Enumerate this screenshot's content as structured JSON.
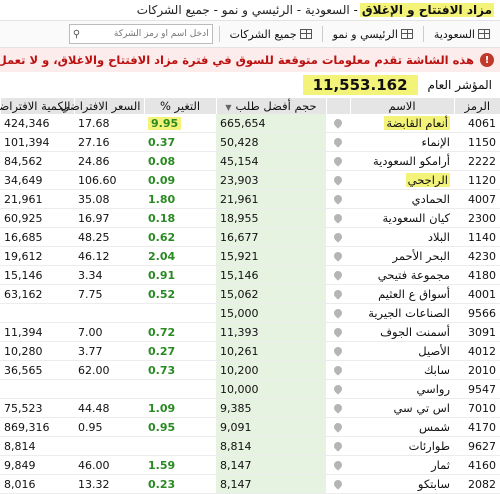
{
  "titlebar": {
    "highlight": "مزاد الافتتاح و الإغلاق",
    "rest": "- السعودية - الرئيسي و نمو - جميع الشركات"
  },
  "toolbar": {
    "btn_market": "السعودية",
    "btn_segment": "الرئيسي و نمو",
    "btn_all": "جميع الشركات",
    "search_placeholder": "ادخل اسم أو رمز الشركة"
  },
  "alert": {
    "text": "هذه الشاشة تقدم معلومات متوقعة للسوق في فترة مزاد الافتتاح والاغلاق، و لا تعمل بعد ذلك."
  },
  "index": {
    "label": "المؤشر العام",
    "value": "11,553.162"
  },
  "table": {
    "headers": {
      "symbol": "الرمز",
      "name": "الاسم",
      "bid": "حجم أفضل طلب",
      "change": "التغير %",
      "price": "السعر الافتراضي",
      "qty": "الكمية الافتراضية"
    },
    "rows": [
      {
        "symbol": "4061",
        "name": "أنعام القابضة",
        "bid": "665,654",
        "change": "9.95",
        "price": "17.68",
        "qty": "424,346"
      },
      {
        "symbol": "1150",
        "name": "الإنماء",
        "bid": "50,428",
        "change": "0.37",
        "price": "27.16",
        "qty": "101,394"
      },
      {
        "symbol": "2222",
        "name": "أرامكو السعودية",
        "bid": "45,154",
        "change": "0.08",
        "price": "24.86",
        "qty": "84,562"
      },
      {
        "symbol": "1120",
        "name": "الراجحي",
        "bid": "23,903",
        "change": "0.09",
        "price": "106.60",
        "qty": "34,649"
      },
      {
        "symbol": "4007",
        "name": "الحمادي",
        "bid": "21,961",
        "change": "1.80",
        "price": "35.08",
        "qty": "21,961"
      },
      {
        "symbol": "2300",
        "name": "كيان السعودية",
        "bid": "18,955",
        "change": "0.18",
        "price": "16.97",
        "qty": "60,925"
      },
      {
        "symbol": "1140",
        "name": "البلاد",
        "bid": "16,677",
        "change": "0.62",
        "price": "48.25",
        "qty": "16,685"
      },
      {
        "symbol": "4230",
        "name": "البحر الأحمر",
        "bid": "15,921",
        "change": "2.04",
        "price": "46.12",
        "qty": "19,612"
      },
      {
        "symbol": "4180",
        "name": "مجموعة فتيحي",
        "bid": "15,146",
        "change": "0.91",
        "price": "3.34",
        "qty": "15,146"
      },
      {
        "symbol": "4001",
        "name": "أسواق ع العثيم",
        "bid": "15,062",
        "change": "0.52",
        "price": "7.75",
        "qty": "63,162"
      },
      {
        "symbol": "9566",
        "name": "الصناعات الجيرية",
        "bid": "15,000",
        "change": "",
        "price": "",
        "qty": ""
      },
      {
        "symbol": "3091",
        "name": "أسمنت الجوف",
        "bid": "11,393",
        "change": "0.72",
        "price": "7.00",
        "qty": "11,394"
      },
      {
        "symbol": "4012",
        "name": "الأصيل",
        "bid": "10,261",
        "change": "0.27",
        "price": "3.77",
        "qty": "10,280"
      },
      {
        "symbol": "2010",
        "name": "سابك",
        "bid": "10,200",
        "change": "0.73",
        "price": "62.00",
        "qty": "36,565"
      },
      {
        "symbol": "9547",
        "name": "رواسي",
        "bid": "10,000",
        "change": "",
        "price": "",
        "qty": ""
      },
      {
        "symbol": "7010",
        "name": "اس تي سي",
        "bid": "9,385",
        "change": "1.09",
        "price": "44.48",
        "qty": "75,523"
      },
      {
        "symbol": "4170",
        "name": "شمس",
        "bid": "9,091",
        "change": "0.95",
        "price": "0.95",
        "qty": "869,316"
      },
      {
        "symbol": "9627",
        "name": "طوارئات",
        "bid": "8,814",
        "change": "",
        "price": "",
        "qty": "8,814"
      },
      {
        "symbol": "4160",
        "name": "ثمار",
        "bid": "8,147",
        "change": "1.59",
        "price": "46.00",
        "qty": "9,849"
      },
      {
        "symbol": "2082",
        "name": "سابتكو",
        "bid": "8,147",
        "change": "0.23",
        "price": "13.32",
        "qty": "8,016"
      }
    ]
  },
  "colors": {
    "highlight": "#f3f37a",
    "positive": "#2a8a22",
    "bid_bg": "#e6f3e1",
    "alert_text": "#b11111"
  }
}
